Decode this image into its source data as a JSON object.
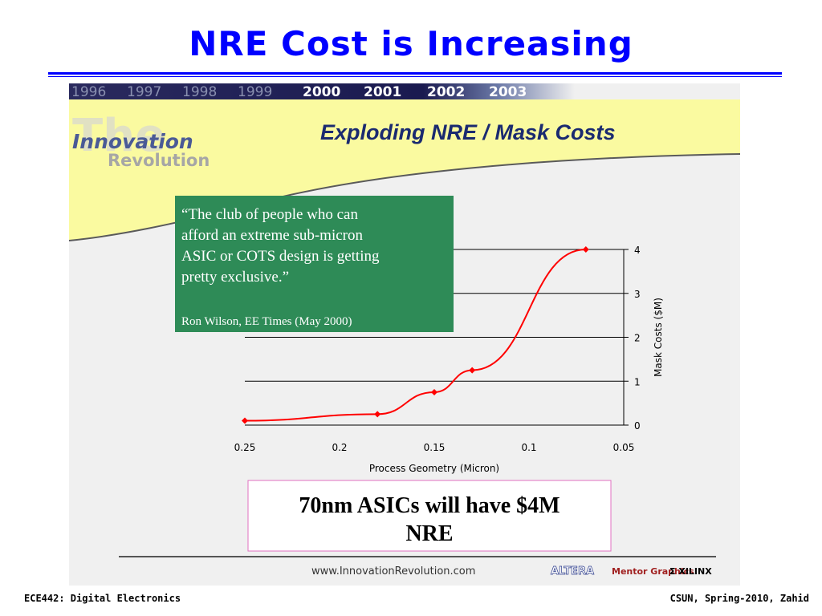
{
  "slide": {
    "title": "NRE Cost is Increasing",
    "footer_left": "ECE442: Digital Electronics",
    "footer_right": "CSUN, Spring-2010, Zahid"
  },
  "embedded_slide": {
    "years_dim": [
      "1996",
      "1997",
      "1998",
      "1999"
    ],
    "years_bright": [
      "2000",
      "2001",
      "2002",
      "2003"
    ],
    "logo_innovation": "Innovation",
    "logo_revolution": "Revolution",
    "heading": "Exploding NRE / Mask Costs",
    "quote_lines": [
      "“The club of people who can",
      "afford an extreme sub-micron",
      "ASIC or COTS design is getting",
      "pretty exclusive.”"
    ],
    "quote_attribution": "Ron Wilson, EE Times (May 2000)",
    "callout_lines": [
      "70nm ASICs will have $4M",
      "NRE"
    ],
    "url": "www.InnovationRevolution.com",
    "sponsor_logos": [
      "ALTERA",
      "Mentor Graphics",
      "XILINX"
    ]
  },
  "chart_data": {
    "type": "line",
    "xlabel": "Process Geometry (Micron)",
    "ylabel": "Mask Costs ($M)",
    "xlim": [
      0.25,
      0.05
    ],
    "ylim": [
      0,
      4
    ],
    "x_ticks": [
      "0.25",
      "0.2",
      "0.15",
      "0.1",
      "0.05"
    ],
    "y_ticks": [
      "0",
      "1",
      "2",
      "3",
      "4"
    ],
    "grid": "horizontal",
    "series": [
      {
        "color": "#ff0000",
        "x": [
          0.25,
          0.18,
          0.15,
          0.13,
          0.07
        ],
        "y": [
          0.1,
          0.25,
          0.75,
          1.25,
          4.0
        ]
      }
    ]
  }
}
